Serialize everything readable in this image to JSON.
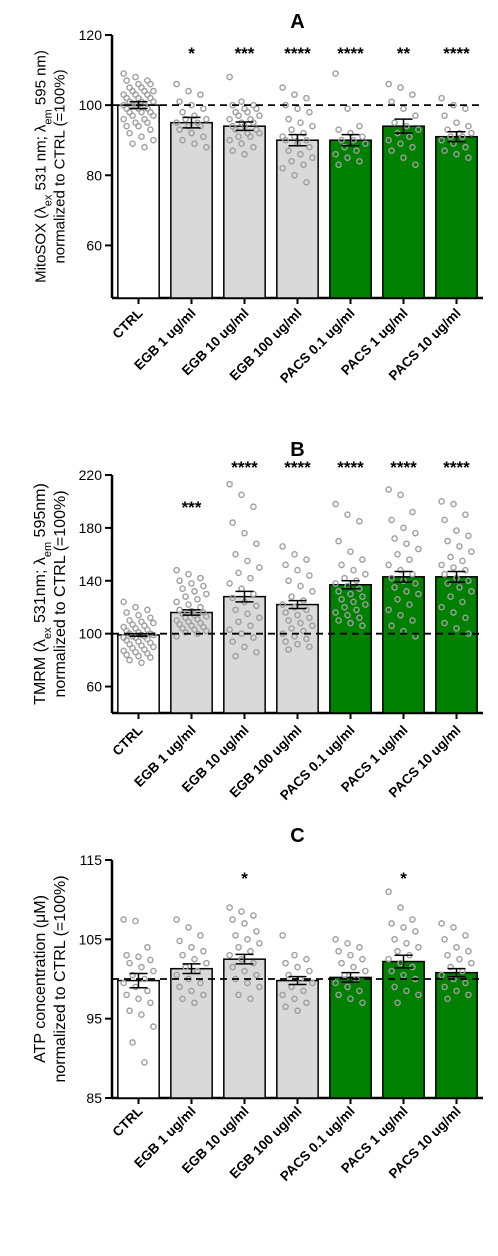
{
  "chart_data": [
    {
      "type": "bar",
      "panel_label": "A",
      "categories": [
        "CTRL",
        "EGB 1 ug/ml",
        "EGB 10 ug/ml",
        "EGB 100 ug/ml",
        "PACS 0.1 ug/ml",
        "PACS 1 ug/ml",
        "PACS 10 ug/ml"
      ],
      "values": [
        100,
        95,
        94,
        90,
        90,
        94,
        91
      ],
      "sem": [
        1.0,
        1.5,
        1.2,
        1.6,
        1.6,
        2.0,
        1.4
      ],
      "significance": [
        "",
        "*",
        "***",
        "****",
        "****",
        "**",
        "****"
      ],
      "bar_colors": [
        "#ffffff",
        "#d9d9d9",
        "#d9d9d9",
        "#d9d9d9",
        "#008000",
        "#008000",
        "#008000"
      ],
      "ylabel": "MitoSOX (λex 531 nm; λem 595 nm) normalized to CTRL (=100%)",
      "ylim": [
        45,
        120
      ],
      "yticks": [
        60,
        80,
        100,
        120
      ],
      "reference_line": 100,
      "points": [
        [
          109,
          108,
          107,
          107,
          106,
          106,
          105,
          105,
          104,
          104,
          104,
          103,
          103,
          103,
          102,
          102,
          102,
          101,
          101,
          101,
          100,
          100,
          100,
          100,
          99,
          99,
          99,
          98,
          98,
          98,
          97,
          97,
          96,
          96,
          95,
          95,
          94,
          94,
          93,
          92,
          91,
          90,
          89,
          88
        ],
        [
          106,
          104,
          103,
          101,
          100,
          99,
          98,
          97,
          96,
          96,
          95,
          95,
          94,
          94,
          93,
          92,
          91,
          90,
          89,
          88
        ],
        [
          108,
          101,
          100,
          100,
          99,
          99,
          98,
          98,
          97,
          97,
          96,
          96,
          95,
          95,
          94,
          94,
          93,
          93,
          92,
          92,
          91,
          91,
          90,
          89,
          88,
          87,
          86
        ],
        [
          105,
          103,
          102,
          100,
          99,
          98,
          96,
          95,
          94,
          93,
          92,
          91,
          91,
          90,
          90,
          89,
          88,
          87,
          86,
          85,
          84,
          83,
          82,
          80,
          78
        ],
        [
          109,
          99,
          94,
          93,
          92,
          91,
          90,
          90,
          89,
          88,
          87,
          86,
          85,
          84,
          83
        ],
        [
          106,
          105,
          103,
          101,
          99,
          97,
          95,
          94,
          93,
          92,
          91,
          90,
          89,
          88,
          87,
          85,
          83
        ],
        [
          102,
          100,
          99,
          97,
          95,
          94,
          93,
          92,
          92,
          91,
          91,
          90,
          89,
          88,
          87,
          86,
          85
        ]
      ]
    },
    {
      "type": "bar",
      "panel_label": "B",
      "categories": [
        "CTRL",
        "EGB 1 ug/ml",
        "EGB 10 ug/ml",
        "EGB 100 ug/ml",
        "PACS 0.1 ug/ml",
        "PACS 1 ug/ml",
        "PACS 10 ug/ml"
      ],
      "values": [
        99,
        116,
        128,
        122,
        137,
        143,
        143
      ],
      "sem": [
        1.0,
        2.0,
        4.0,
        3.0,
        3.0,
        4.0,
        4.0
      ],
      "significance": [
        "",
        "***",
        "****",
        "****",
        "****",
        "****",
        "****"
      ],
      "bar_colors": [
        "#ffffff",
        "#d9d9d9",
        "#d9d9d9",
        "#d9d9d9",
        "#008000",
        "#008000",
        "#008000"
      ],
      "ylabel": "TMRM (λex 531nm; λem 595nm) normalized to CTRL (=100%)",
      "ylim": [
        40,
        220
      ],
      "yticks": [
        60,
        100,
        140,
        180,
        220
      ],
      "reference_line": 100,
      "points": [
        [
          124,
          120,
          118,
          116,
          114,
          112,
          110,
          109,
          108,
          107,
          106,
          105,
          104,
          103,
          102,
          101,
          100,
          100,
          99,
          99,
          98,
          98,
          97,
          97,
          96,
          95,
          94,
          93,
          92,
          91,
          90,
          89,
          88,
          87,
          86,
          85,
          84,
          83,
          82,
          80,
          78
        ],
        [
          148,
          145,
          142,
          140,
          138,
          136,
          134,
          132,
          130,
          128,
          126,
          124,
          122,
          120,
          118,
          117,
          116,
          115,
          114,
          113,
          112,
          111,
          110,
          109,
          108,
          107,
          106,
          105,
          104,
          103,
          102,
          101,
          100,
          98
        ],
        [
          213,
          205,
          196,
          184,
          176,
          168,
          160,
          155,
          150,
          146,
          142,
          138,
          134,
          130,
          127,
          124,
          121,
          118,
          115,
          112,
          109,
          106,
          103,
          100,
          97,
          94,
          90,
          86,
          83
        ],
        [
          166,
          160,
          156,
          152,
          148,
          144,
          140,
          136,
          132,
          128,
          125,
          122,
          120,
          118,
          116,
          114,
          112,
          110,
          108,
          106,
          104,
          102,
          100,
          98,
          96,
          94,
          92,
          90,
          88
        ],
        [
          198,
          190,
          185,
          170,
          162,
          156,
          152,
          148,
          145,
          142,
          140,
          138,
          136,
          134,
          132,
          130,
          128,
          126,
          124,
          122,
          120,
          118,
          116,
          114,
          112,
          110,
          108,
          106
        ],
        [
          209,
          205,
          192,
          186,
          180,
          176,
          172,
          168,
          164,
          160,
          156,
          152,
          148,
          145,
          142,
          140,
          138,
          135,
          132,
          130,
          126,
          122,
          118,
          114,
          110,
          106,
          102,
          98
        ],
        [
          200,
          198,
          190,
          186,
          178,
          174,
          170,
          166,
          162,
          158,
          155,
          152,
          150,
          148,
          145,
          142,
          140,
          138,
          135,
          132,
          128,
          124,
          120,
          116,
          112,
          108,
          104,
          100
        ]
      ]
    },
    {
      "type": "bar",
      "panel_label": "C",
      "categories": [
        "CTRL",
        "EGB 1 ug/ml",
        "EGB 10 ug/ml",
        "EGB 100 ug/ml",
        "PACS 0.1 ug/ml",
        "PACS 1 ug/ml",
        "PACS 10 ug/ml"
      ],
      "values": [
        99.8,
        101.3,
        102.5,
        99.8,
        100.2,
        102.2,
        100.8
      ],
      "sem": [
        0.9,
        0.6,
        0.6,
        0.5,
        0.6,
        0.8,
        0.5
      ],
      "significance": [
        "",
        "",
        "*",
        "",
        "",
        "*",
        ""
      ],
      "bar_colors": [
        "#ffffff",
        "#d9d9d9",
        "#d9d9d9",
        "#d9d9d9",
        "#008000",
        "#008000",
        "#008000"
      ],
      "ylabel": "ATP concentration (μM) normalized to CTRL (=100%)",
      "ylim": [
        85,
        115
      ],
      "yticks": [
        85,
        95,
        105,
        115
      ],
      "reference_line": 100,
      "points": [
        [
          107.5,
          107.3,
          104,
          103,
          102.8,
          102.4,
          102,
          101.5,
          101,
          100.5,
          100,
          99.5,
          99,
          98.5,
          98,
          97.5,
          97,
          96,
          95.5,
          94,
          92,
          89.5
        ],
        [
          107.5,
          106.5,
          105.5,
          104.8,
          104,
          103.5,
          103,
          102.5,
          102,
          101.5,
          101,
          100.5,
          100,
          99.5,
          99,
          98.5,
          98,
          97.5,
          97
        ],
        [
          109,
          108.5,
          108,
          107.5,
          107,
          106,
          105.5,
          105,
          104.5,
          104,
          103.5,
          103,
          102.5,
          102,
          101.5,
          101,
          100.5,
          100,
          99.5,
          99,
          98,
          97.5
        ],
        [
          105.5,
          103,
          102.5,
          102,
          101.5,
          101,
          100.5,
          100,
          99.5,
          99,
          98.5,
          98,
          97.5,
          97,
          96.5,
          96
        ],
        [
          105,
          104.5,
          104,
          103.5,
          103,
          102.5,
          102,
          101.5,
          101,
          100.5,
          100,
          99.5,
          99,
          98.5,
          98,
          97.5,
          97
        ],
        [
          111,
          109,
          107.5,
          107,
          106.5,
          106,
          105,
          104.5,
          104,
          103.5,
          103,
          102.5,
          102,
          101.5,
          101,
          100.5,
          100,
          99,
          98.5,
          98,
          97
        ],
        [
          107,
          106.5,
          105.5,
          105,
          104,
          103.5,
          103,
          102.5,
          102,
          101.5,
          101,
          100.5,
          100,
          99.5,
          99,
          98.5,
          98,
          97.5
        ]
      ]
    }
  ]
}
